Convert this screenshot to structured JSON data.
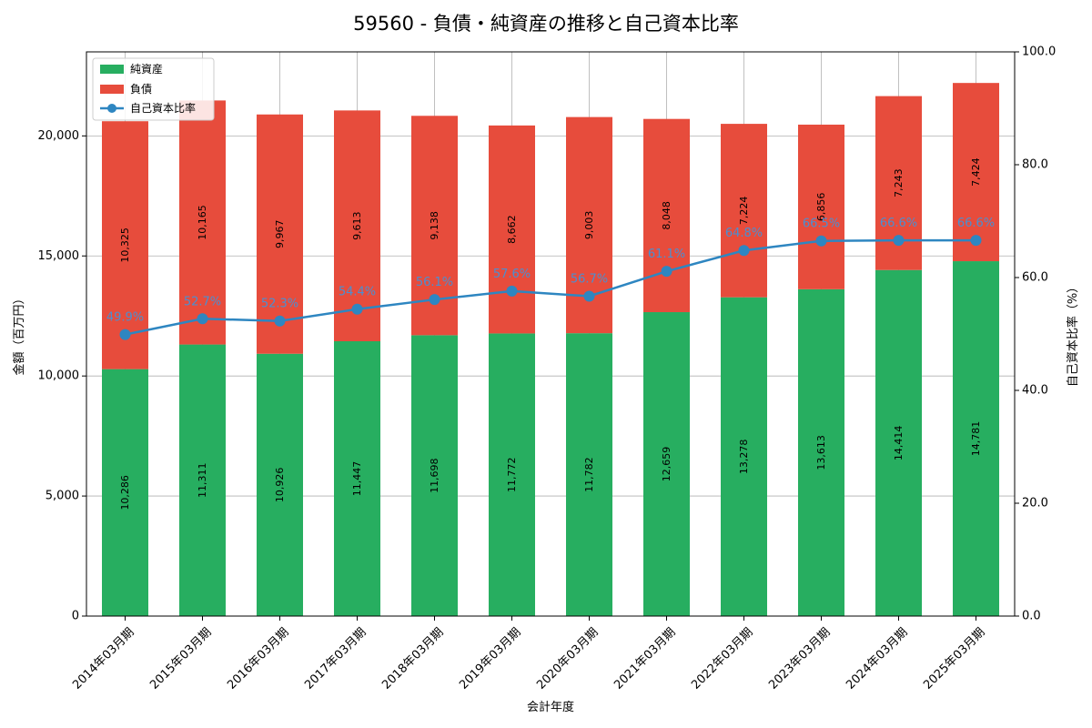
{
  "chart_data": {
    "type": "bar",
    "title": "59560 - 負債・純資産の推移と自己資本比率",
    "xlabel": "会計年度",
    "ylabel": "金額（百万円）",
    "y2label": "自己資本比率（%）",
    "categories": [
      "2014年03月期",
      "2015年03月期",
      "2016年03月期",
      "2017年03月期",
      "2018年03月期",
      "2019年03月期",
      "2020年03月期",
      "2021年03月期",
      "2022年03月期",
      "2023年03月期",
      "2024年03月期",
      "2025年03月期"
    ],
    "series": [
      {
        "name": "純資産",
        "kind": "stacked-bar",
        "color": "#27ae60",
        "values": [
          10286,
          11311,
          10926,
          11447,
          11698,
          11772,
          11782,
          12659,
          13278,
          13613,
          14414,
          14781
        ],
        "labels": [
          "10,286",
          "11,311",
          "10,926",
          "11,447",
          "11,698",
          "11,772",
          "11,782",
          "12,659",
          "13,278",
          "13,613",
          "14,414",
          "14,781"
        ]
      },
      {
        "name": "負債",
        "kind": "stacked-bar",
        "color": "#e74c3c",
        "values": [
          10325,
          10165,
          9967,
          9613,
          9138,
          8662,
          9003,
          8048,
          7224,
          6856,
          7243,
          7424
        ],
        "labels": [
          "10,325",
          "10,165",
          "9,967",
          "9,613",
          "9,138",
          "8,662",
          "9,003",
          "8,048",
          "7,224",
          "6,856",
          "7,243",
          "7,424"
        ]
      },
      {
        "name": "自己資本比率",
        "kind": "line",
        "axis": "right",
        "color": "#2e86c1",
        "values": [
          49.9,
          52.7,
          52.3,
          54.4,
          56.1,
          57.6,
          56.7,
          61.1,
          64.8,
          66.5,
          66.6,
          66.6
        ],
        "labels": [
          "49.9%",
          "52.7%",
          "52.3%",
          "54.4%",
          "56.1%",
          "57.6%",
          "56.7%",
          "61.1%",
          "64.8%",
          "66.5%",
          "66.6%",
          "66.6%"
        ]
      }
    ],
    "ylim": [
      0,
      23500
    ],
    "yticks": [
      0,
      5000,
      10000,
      15000,
      20000
    ],
    "ytick_labels": [
      "0",
      "5,000",
      "10,000",
      "15,000",
      "20,000"
    ],
    "y2lim": [
      0,
      100
    ],
    "y2ticks": [
      0,
      20,
      40,
      60,
      80,
      100
    ],
    "y2tick_labels": [
      "0.0",
      "20.0",
      "40.0",
      "60.0",
      "80.0",
      "100.0"
    ],
    "grid": true,
    "legend": "top-left"
  }
}
